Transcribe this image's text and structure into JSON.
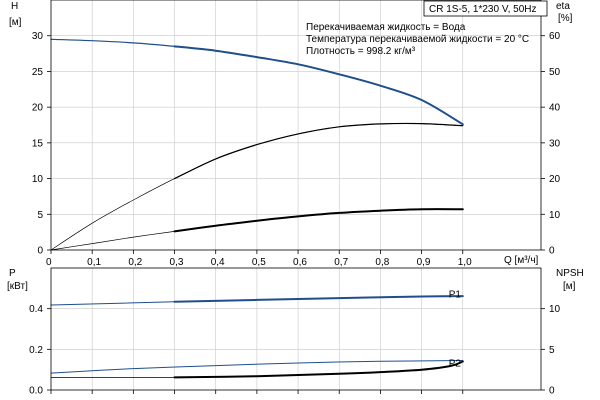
{
  "chart_data": [
    {
      "type": "line",
      "name": "top",
      "xlabel": "Q [м³/ч]",
      "x_ticks": [
        "0",
        "0,1",
        "0,2",
        "0,3",
        "0,4",
        "0,5",
        "0,6",
        "0,7",
        "0,8",
        "0,9",
        "1,0"
      ],
      "xlim": [
        0,
        1.19
      ],
      "ylabel_left": "H",
      "ylabel_left_unit": "[м]",
      "ylim_left": [
        0,
        35
      ],
      "y_ticks_left": [
        "0",
        "5",
        "10",
        "15",
        "20",
        "25",
        "30"
      ],
      "ylabel_right": "eta",
      "ylabel_right_unit": "[%]",
      "ylim_right": [
        0,
        70
      ],
      "y_ticks_right": [
        "0",
        "10",
        "20",
        "30",
        "40",
        "50",
        "60"
      ],
      "grid": true,
      "pump_label": "CR 1S-5, 1*230 V, 50Hz",
      "annotations": [
        "Перекачиваемая жидкость = Вода",
        "Температура перекачиваемой жидкости = 20 °C",
        "Плотность = 998.2 кг/м³"
      ],
      "series": [
        {
          "axis": "left",
          "color": "#1f4e8c",
          "width": 1.2,
          "x": [
            0,
            0.1,
            0.2,
            0.3,
            0.4,
            0.5,
            0.6,
            0.7,
            0.8,
            0.9,
            1.0
          ],
          "y": [
            29.5,
            29.3,
            29.0,
            28.5,
            27.9,
            27.0,
            26.0,
            24.6,
            23.0,
            21.0,
            17.6
          ]
        },
        {
          "axis": "left",
          "color": "#1f4e8c",
          "width": 2,
          "x": [
            0.3,
            0.4,
            0.5,
            0.6,
            0.7,
            0.8,
            0.9,
            1.0
          ],
          "y": [
            28.5,
            27.9,
            27.0,
            26.0,
            24.6,
            23.0,
            21.0,
            17.6
          ]
        },
        {
          "axis": "right",
          "color": "#000000",
          "width": 0.7,
          "x": [
            0,
            0.1,
            0.2,
            0.3,
            0.4,
            0.5,
            0.6,
            0.7,
            0.8,
            0.9,
            1.0
          ],
          "y": [
            0,
            7.5,
            14,
            20,
            25.5,
            29.5,
            32.5,
            34.5,
            35.3,
            35.4,
            34.8
          ]
        },
        {
          "axis": "right",
          "color": "#000000",
          "width": 1.2,
          "x": [
            0.3,
            0.4,
            0.5,
            0.6,
            0.7,
            0.8,
            0.9,
            1.0
          ],
          "y": [
            20,
            25.5,
            29.5,
            32.5,
            34.5,
            35.3,
            35.4,
            34.8
          ]
        },
        {
          "axis": "left",
          "color": "#000000",
          "width": 0.7,
          "x": [
            0,
            0.1,
            0.2,
            0.3
          ],
          "y": [
            0,
            0.9,
            1.8,
            2.6
          ]
        },
        {
          "axis": "left",
          "color": "#000000",
          "width": 2,
          "x": [
            0.3,
            0.4,
            0.5,
            0.6,
            0.7,
            0.8,
            0.9,
            1.0
          ],
          "y": [
            2.6,
            3.4,
            4.1,
            4.7,
            5.2,
            5.5,
            5.7,
            5.7
          ]
        }
      ]
    },
    {
      "type": "line",
      "name": "bottom",
      "xlim": [
        0,
        1.19
      ],
      "ylabel_left": "P",
      "ylabel_left_unit": "[кВт]",
      "ylim_left": [
        0,
        0.6
      ],
      "y_ticks_left": [
        "0.0",
        "0.2",
        "0.4"
      ],
      "ylabel_right": "NPSH",
      "ylabel_right_unit": "[м]",
      "ylim_right": [
        0,
        15
      ],
      "y_ticks_right": [
        "0",
        "5",
        "10"
      ],
      "grid": true,
      "series_labels": [
        {
          "text": "P1",
          "x": 1.0,
          "y": 0.47
        },
        {
          "text": "P2",
          "x": 1.0,
          "y": 0.13
        }
      ],
      "series": [
        {
          "axis": "left",
          "color": "#1f4e8c",
          "width": 1.0,
          "x": [
            0,
            0.3,
            0.5,
            0.7,
            0.9,
            1.0
          ],
          "y": [
            0.418,
            0.434,
            0.443,
            0.452,
            0.46,
            0.462
          ]
        },
        {
          "axis": "left",
          "color": "#1f4e8c",
          "width": 2,
          "x": [
            0.3,
            0.5,
            0.7,
            0.9,
            1.0
          ],
          "y": [
            0.434,
            0.443,
            0.452,
            0.46,
            0.462
          ]
        },
        {
          "axis": "left",
          "color": "#1f4e8c",
          "width": 1.0,
          "x": [
            0,
            0.2,
            0.4,
            0.6,
            0.8,
            1.0
          ],
          "y": [
            0.083,
            0.105,
            0.12,
            0.133,
            0.141,
            0.145
          ]
        },
        {
          "axis": "left",
          "color": "#000000",
          "width": 0.8,
          "x": [
            0,
            0.3
          ],
          "y": [
            0.062,
            0.062
          ]
        },
        {
          "axis": "left",
          "color": "#000000",
          "width": 2,
          "x": [
            0.3,
            0.5,
            0.7,
            0.8,
            0.9,
            0.97,
            1.0
          ],
          "y": [
            0.062,
            0.068,
            0.08,
            0.088,
            0.1,
            0.118,
            0.14
          ]
        }
      ]
    }
  ]
}
